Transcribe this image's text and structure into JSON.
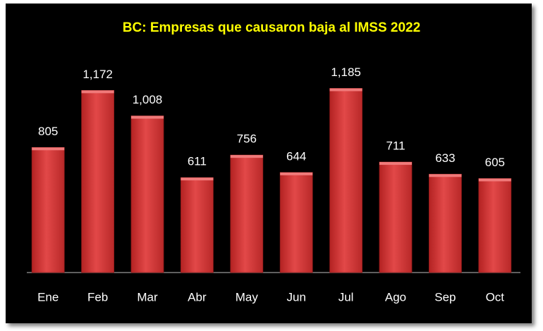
{
  "chart_data": {
    "type": "bar",
    "title": "BC: Empresas que causaron baja al IMSS 2022",
    "categories": [
      "Ene",
      "Feb",
      "Mar",
      "Abr",
      "May",
      "Jun",
      "Jul",
      "Ago",
      "Sep",
      "Oct"
    ],
    "values": [
      805,
      1172,
      1008,
      611,
      756,
      644,
      1185,
      711,
      633,
      605
    ],
    "value_labels": [
      "805",
      "1,172",
      "1,008",
      "611",
      "756",
      "644",
      "1,185",
      "711",
      "633",
      "605"
    ],
    "color": "#d93a3a",
    "ylim": [
      0,
      1400
    ]
  }
}
